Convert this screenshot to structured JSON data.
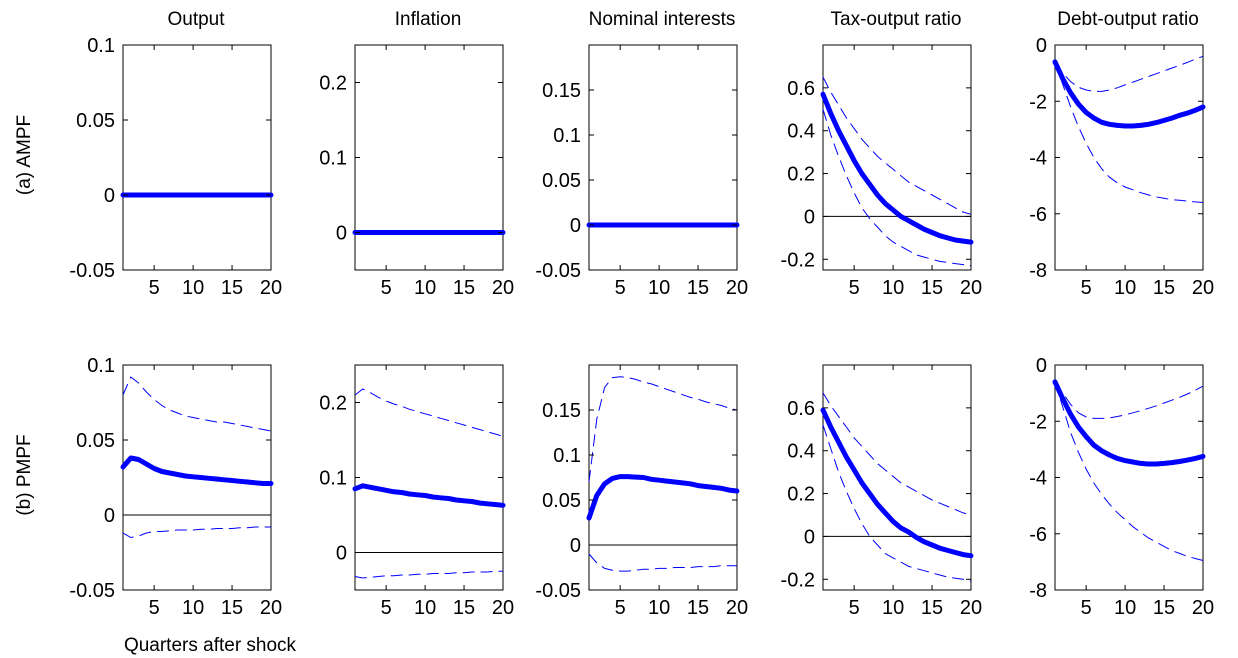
{
  "figure": {
    "column_titles": [
      "Output",
      "Inflation",
      "Nominal interests",
      "Tax-output ratio",
      "Debt-output ratio"
    ],
    "row_labels": [
      "(a) AMPF",
      "(b) PMPF"
    ],
    "xlabel": "Quarters after shock"
  },
  "chart_data": [
    {
      "type": "line",
      "row": "(a) AMPF",
      "title": "Output",
      "xlim": [
        1,
        20
      ],
      "ylim": [
        -0.05,
        0.1
      ],
      "xticks": [
        5,
        10,
        15,
        20
      ],
      "yticks": [
        -0.05,
        0,
        0.05,
        0.1
      ],
      "ytick_labels": [
        "-0.05",
        "0",
        "0.05",
        "0.1"
      ],
      "x": [
        1,
        20
      ],
      "mean": [
        0,
        0
      ],
      "lower": [
        0,
        0
      ],
      "upper": [
        0,
        0
      ],
      "zero_line": false
    },
    {
      "type": "line",
      "row": "(a) AMPF",
      "title": "Inflation",
      "xlim": [
        1,
        20
      ],
      "ylim": [
        -0.05,
        0.25
      ],
      "xticks": [
        5,
        10,
        15,
        20
      ],
      "yticks": [
        0,
        0.1,
        0.2
      ],
      "ytick_labels": [
        "0",
        "0.1",
        "0.2"
      ],
      "x": [
        1,
        20
      ],
      "mean": [
        0,
        0
      ],
      "lower": [
        0,
        0
      ],
      "upper": [
        0,
        0
      ],
      "zero_line": false
    },
    {
      "type": "line",
      "row": "(a) AMPF",
      "title": "Nominal interests",
      "xlim": [
        1,
        20
      ],
      "ylim": [
        -0.05,
        0.2
      ],
      "xticks": [
        5,
        10,
        15,
        20
      ],
      "yticks": [
        -0.05,
        0,
        0.05,
        0.1,
        0.15
      ],
      "ytick_labels": [
        "-0.05",
        "0",
        "0.05",
        "0.1",
        "0.15"
      ],
      "x": [
        1,
        20
      ],
      "mean": [
        0,
        0
      ],
      "lower": [
        0,
        0
      ],
      "upper": [
        0,
        0
      ],
      "zero_line": false
    },
    {
      "type": "line",
      "row": "(a) AMPF",
      "title": "Tax-output ratio",
      "xlim": [
        1,
        20
      ],
      "ylim": [
        -0.25,
        0.8
      ],
      "xticks": [
        5,
        10,
        15,
        20
      ],
      "yticks": [
        -0.2,
        0,
        0.2,
        0.4,
        0.6
      ],
      "ytick_labels": [
        "-0.2",
        "0",
        "0.2",
        "0.4",
        "0.6"
      ],
      "x": [
        1,
        2,
        3,
        4,
        5,
        6,
        7,
        8,
        9,
        10,
        11,
        12,
        13,
        14,
        15,
        16,
        17,
        18,
        19,
        20
      ],
      "mean": [
        0.57,
        0.48,
        0.4,
        0.33,
        0.26,
        0.2,
        0.15,
        0.1,
        0.06,
        0.03,
        0.0,
        -0.02,
        -0.04,
        -0.06,
        -0.075,
        -0.09,
        -0.1,
        -0.11,
        -0.115,
        -0.12
      ],
      "lower": [
        0.5,
        0.38,
        0.28,
        0.19,
        0.11,
        0.04,
        -0.01,
        -0.05,
        -0.09,
        -0.12,
        -0.14,
        -0.16,
        -0.18,
        -0.19,
        -0.2,
        -0.21,
        -0.215,
        -0.22,
        -0.225,
        -0.23
      ],
      "upper": [
        0.65,
        0.58,
        0.52,
        0.46,
        0.41,
        0.36,
        0.32,
        0.28,
        0.25,
        0.22,
        0.19,
        0.16,
        0.14,
        0.12,
        0.1,
        0.08,
        0.06,
        0.04,
        0.02,
        0.01
      ],
      "zero_line": true
    },
    {
      "type": "line",
      "row": "(a) AMPF",
      "title": "Debt-output ratio",
      "xlim": [
        1,
        20
      ],
      "ylim": [
        -8,
        0
      ],
      "xticks": [
        5,
        10,
        15,
        20
      ],
      "yticks": [
        -8,
        -6,
        -4,
        -2,
        0
      ],
      "ytick_labels": [
        "-8",
        "-6",
        "-4",
        "-2",
        "0"
      ],
      "x": [
        1,
        2,
        3,
        4,
        5,
        6,
        7,
        8,
        9,
        10,
        11,
        12,
        13,
        14,
        15,
        16,
        17,
        18,
        19,
        20
      ],
      "mean": [
        -0.6,
        -1.2,
        -1.7,
        -2.1,
        -2.4,
        -2.6,
        -2.75,
        -2.82,
        -2.86,
        -2.88,
        -2.88,
        -2.86,
        -2.82,
        -2.76,
        -2.68,
        -2.6,
        -2.5,
        -2.42,
        -2.32,
        -2.2
      ],
      "lower": [
        -0.6,
        -1.4,
        -2.2,
        -2.9,
        -3.5,
        -4.0,
        -4.4,
        -4.7,
        -4.9,
        -5.05,
        -5.15,
        -5.25,
        -5.33,
        -5.4,
        -5.45,
        -5.5,
        -5.52,
        -5.55,
        -5.58,
        -5.6
      ],
      "upper": [
        -0.6,
        -1.0,
        -1.3,
        -1.5,
        -1.6,
        -1.65,
        -1.65,
        -1.6,
        -1.52,
        -1.42,
        -1.32,
        -1.22,
        -1.12,
        -1.02,
        -0.92,
        -0.82,
        -0.72,
        -0.62,
        -0.5,
        -0.4
      ],
      "zero_line": false
    },
    {
      "type": "line",
      "row": "(b) PMPF",
      "title": "Output",
      "xlim": [
        1,
        20
      ],
      "ylim": [
        -0.05,
        0.1
      ],
      "xticks": [
        5,
        10,
        15,
        20
      ],
      "yticks": [
        -0.05,
        0,
        0.05,
        0.1
      ],
      "ytick_labels": [
        "-0.05",
        "0",
        "0.05",
        "0.1"
      ],
      "x": [
        1,
        2,
        3,
        4,
        5,
        6,
        7,
        8,
        9,
        10,
        11,
        12,
        13,
        14,
        15,
        16,
        17,
        18,
        19,
        20
      ],
      "mean": [
        0.032,
        0.038,
        0.037,
        0.034,
        0.031,
        0.029,
        0.028,
        0.027,
        0.026,
        0.0255,
        0.025,
        0.0245,
        0.024,
        0.0235,
        0.023,
        0.0225,
        0.022,
        0.0215,
        0.021,
        0.021
      ],
      "lower": [
        -0.012,
        -0.015,
        -0.014,
        -0.012,
        -0.011,
        -0.011,
        -0.0105,
        -0.01,
        -0.01,
        -0.01,
        -0.0095,
        -0.0095,
        -0.009,
        -0.009,
        -0.009,
        -0.0085,
        -0.0085,
        -0.008,
        -0.008,
        -0.008
      ],
      "upper": [
        0.08,
        0.092,
        0.088,
        0.082,
        0.077,
        0.073,
        0.07,
        0.068,
        0.066,
        0.065,
        0.064,
        0.063,
        0.062,
        0.062,
        0.061,
        0.06,
        0.059,
        0.058,
        0.057,
        0.056
      ],
      "zero_line": true
    },
    {
      "type": "line",
      "row": "(b) PMPF",
      "title": "Inflation",
      "xlim": [
        1,
        20
      ],
      "ylim": [
        -0.05,
        0.25
      ],
      "xticks": [
        5,
        10,
        15,
        20
      ],
      "yticks": [
        0,
        0.1,
        0.2
      ],
      "ytick_labels": [
        "0",
        "0.1",
        "0.2"
      ],
      "x": [
        1,
        2,
        3,
        4,
        5,
        6,
        7,
        8,
        9,
        10,
        11,
        12,
        13,
        14,
        15,
        16,
        17,
        18,
        19,
        20
      ],
      "mean": [
        0.085,
        0.089,
        0.087,
        0.085,
        0.083,
        0.081,
        0.08,
        0.078,
        0.077,
        0.076,
        0.074,
        0.073,
        0.072,
        0.07,
        0.069,
        0.068,
        0.066,
        0.065,
        0.064,
        0.063
      ],
      "lower": [
        -0.032,
        -0.034,
        -0.033,
        -0.032,
        -0.031,
        -0.031,
        -0.03,
        -0.03,
        -0.029,
        -0.029,
        -0.028,
        -0.028,
        -0.028,
        -0.027,
        -0.027,
        -0.026,
        -0.026,
        -0.026,
        -0.025,
        -0.025
      ],
      "upper": [
        0.21,
        0.218,
        0.213,
        0.207,
        0.202,
        0.198,
        0.195,
        0.191,
        0.188,
        0.185,
        0.182,
        0.179,
        0.176,
        0.173,
        0.17,
        0.167,
        0.164,
        0.161,
        0.158,
        0.155
      ],
      "zero_line": true
    },
    {
      "type": "line",
      "row": "(b) PMPF",
      "title": "Nominal interests",
      "xlim": [
        1,
        20
      ],
      "ylim": [
        -0.05,
        0.2
      ],
      "xticks": [
        5,
        10,
        15,
        20
      ],
      "yticks": [
        -0.05,
        0,
        0.05,
        0.1,
        0.15
      ],
      "ytick_labels": [
        "-0.05",
        "0",
        "0.05",
        "0.1",
        "0.15"
      ],
      "x": [
        1,
        2,
        3,
        4,
        5,
        6,
        7,
        8,
        9,
        10,
        11,
        12,
        13,
        14,
        15,
        16,
        17,
        18,
        19,
        20
      ],
      "mean": [
        0.03,
        0.055,
        0.068,
        0.074,
        0.076,
        0.076,
        0.0755,
        0.075,
        0.073,
        0.072,
        0.071,
        0.07,
        0.069,
        0.068,
        0.066,
        0.065,
        0.064,
        0.063,
        0.061,
        0.06
      ],
      "lower": [
        -0.01,
        -0.02,
        -0.026,
        -0.028,
        -0.029,
        -0.029,
        -0.028,
        -0.027,
        -0.027,
        -0.026,
        -0.026,
        -0.025,
        -0.025,
        -0.025,
        -0.024,
        -0.024,
        -0.024,
        -0.023,
        -0.023,
        -0.023
      ],
      "upper": [
        0.07,
        0.14,
        0.175,
        0.186,
        0.187,
        0.186,
        0.184,
        0.181,
        0.179,
        0.176,
        0.173,
        0.17,
        0.167,
        0.164,
        0.162,
        0.159,
        0.157,
        0.155,
        0.152,
        0.15
      ],
      "zero_line": true
    },
    {
      "type": "line",
      "row": "(b) PMPF",
      "title": "Tax-output ratio",
      "xlim": [
        1,
        20
      ],
      "ylim": [
        -0.25,
        0.8
      ],
      "xticks": [
        5,
        10,
        15,
        20
      ],
      "yticks": [
        -0.2,
        0,
        0.2,
        0.4,
        0.6
      ],
      "ytick_labels": [
        "-0.2",
        "0",
        "0.2",
        "0.4",
        "0.6"
      ],
      "x": [
        1,
        2,
        3,
        4,
        5,
        6,
        7,
        8,
        9,
        10,
        11,
        12,
        13,
        14,
        15,
        16,
        17,
        18,
        19,
        20
      ],
      "mean": [
        0.59,
        0.51,
        0.44,
        0.37,
        0.31,
        0.25,
        0.2,
        0.15,
        0.11,
        0.07,
        0.04,
        0.02,
        -0.005,
        -0.025,
        -0.04,
        -0.055,
        -0.065,
        -0.075,
        -0.085,
        -0.09
      ],
      "lower": [
        0.52,
        0.41,
        0.3,
        0.21,
        0.13,
        0.06,
        0.0,
        -0.04,
        -0.08,
        -0.1,
        -0.12,
        -0.14,
        -0.15,
        -0.16,
        -0.17,
        -0.18,
        -0.19,
        -0.195,
        -0.2,
        -0.21
      ],
      "upper": [
        0.67,
        0.61,
        0.56,
        0.51,
        0.46,
        0.42,
        0.38,
        0.34,
        0.31,
        0.28,
        0.25,
        0.23,
        0.21,
        0.19,
        0.17,
        0.155,
        0.14,
        0.125,
        0.11,
        0.1
      ],
      "zero_line": true
    },
    {
      "type": "line",
      "row": "(b) PMPF",
      "title": "Debt-output ratio",
      "xlim": [
        1,
        20
      ],
      "ylim": [
        -8,
        0
      ],
      "xticks": [
        5,
        10,
        15,
        20
      ],
      "yticks": [
        -8,
        -6,
        -4,
        -2,
        0
      ],
      "ytick_labels": [
        "-8",
        "-6",
        "-4",
        "-2",
        "0"
      ],
      "x": [
        1,
        2,
        3,
        4,
        5,
        6,
        7,
        8,
        9,
        10,
        11,
        12,
        13,
        14,
        15,
        16,
        17,
        18,
        19,
        20
      ],
      "mean": [
        -0.6,
        -1.2,
        -1.75,
        -2.2,
        -2.55,
        -2.85,
        -3.05,
        -3.2,
        -3.32,
        -3.4,
        -3.45,
        -3.5,
        -3.52,
        -3.52,
        -3.5,
        -3.47,
        -3.43,
        -3.38,
        -3.32,
        -3.25
      ],
      "lower": [
        -0.6,
        -1.5,
        -2.4,
        -3.1,
        -3.7,
        -4.2,
        -4.6,
        -4.95,
        -5.25,
        -5.5,
        -5.75,
        -5.95,
        -6.15,
        -6.3,
        -6.45,
        -6.6,
        -6.7,
        -6.8,
        -6.88,
        -6.95
      ],
      "upper": [
        -0.6,
        -1.0,
        -1.4,
        -1.7,
        -1.85,
        -1.9,
        -1.9,
        -1.88,
        -1.83,
        -1.77,
        -1.7,
        -1.62,
        -1.54,
        -1.45,
        -1.35,
        -1.25,
        -1.15,
        -1.03,
        -0.9,
        -0.75
      ],
      "zero_line": false
    }
  ]
}
